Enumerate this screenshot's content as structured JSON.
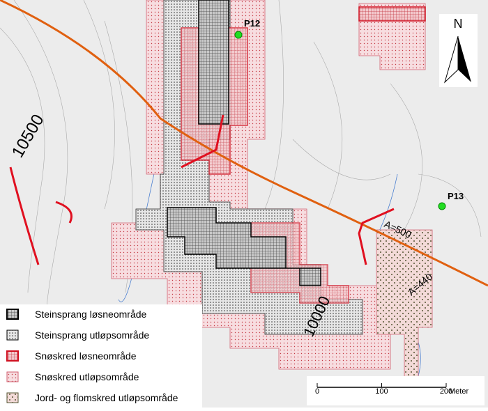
{
  "map": {
    "points": [
      {
        "label": "P12"
      },
      {
        "label": "P13"
      }
    ],
    "contour_labels": [
      "10500",
      "10000"
    ],
    "segment_labels": [
      "A=500",
      "A=440"
    ],
    "north_arrow": "N",
    "legend": [
      "Steinsprang løsneområde",
      "Steinsprang utløpsområde",
      "Snøskred løsneområde",
      "Snøskred utløpsområde",
      "Jord- og flomskred utløpsområde"
    ],
    "scale_bar": {
      "ticks": [
        0,
        100,
        200
      ],
      "unit": "Meter"
    }
  }
}
